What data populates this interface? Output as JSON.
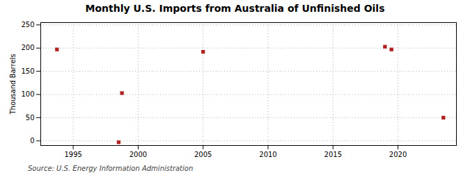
{
  "chart_data": {
    "type": "scatter",
    "title": "Monthly U.S. Imports from Australia of Unfinished Oils",
    "ylabel": "Thousand Barrels",
    "source": "Source: U.S. Energy Information Administration",
    "x": [
      1993.75,
      1998.5,
      1998.75,
      2005.0,
      2019.0,
      2019.5,
      2023.5
    ],
    "values": [
      197,
      -3,
      103,
      192,
      203,
      197,
      50
    ],
    "color": "#B22222",
    "marker": "square",
    "xlim": [
      1992.5,
      2024.5
    ],
    "ylim": [
      -10,
      255
    ],
    "xticks": [
      1995,
      2000,
      2005,
      2010,
      2015,
      2020
    ],
    "yticks": [
      0,
      50,
      100,
      150,
      200,
      250
    ],
    "grid": true
  }
}
